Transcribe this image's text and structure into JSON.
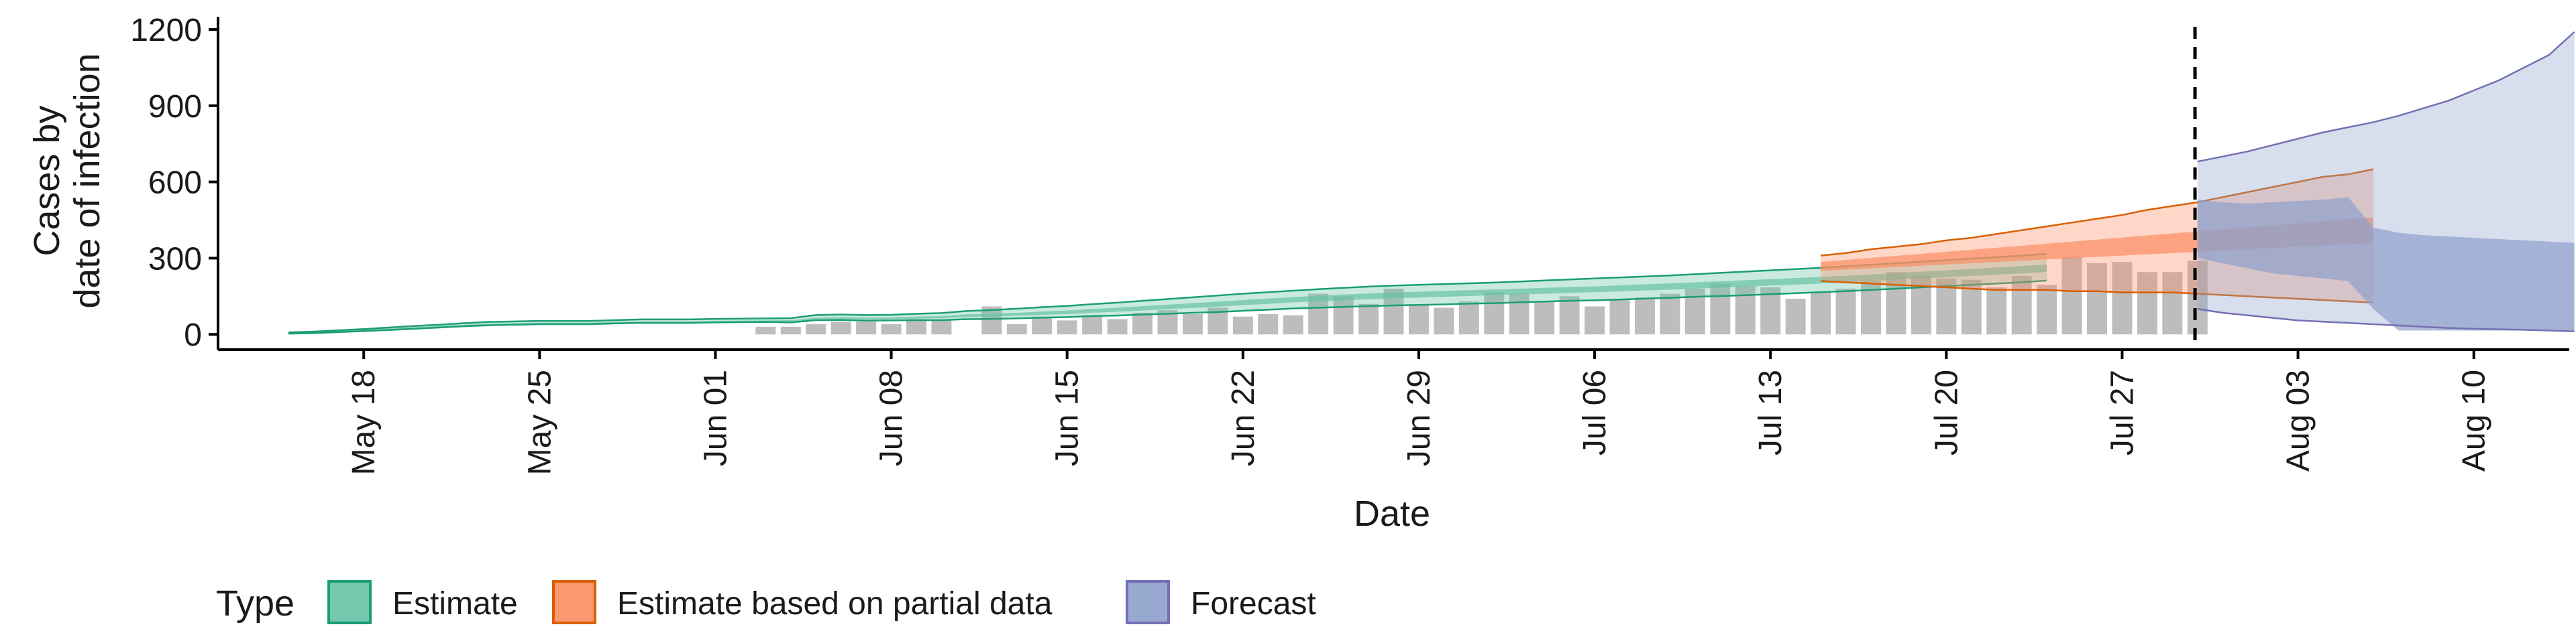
{
  "chart_data": {
    "type": "bar+ribbon",
    "title": "",
    "xlabel": "Date",
    "ylabel_lines": [
      "Cases by",
      "date of infection"
    ],
    "ylim": [
      -60,
      1250
    ],
    "y_ticks": [
      0,
      300,
      600,
      900,
      1200
    ],
    "y_tick_labels": [
      "0",
      "300",
      "600",
      "900",
      "1200"
    ],
    "x_start_date": "2020-05-15",
    "x_domain_days": [
      -2.8,
      90.8
    ],
    "x_ticks": [
      {
        "day": 3,
        "label": "May 18"
      },
      {
        "day": 10,
        "label": "May 25"
      },
      {
        "day": 17,
        "label": "Jun 01"
      },
      {
        "day": 24,
        "label": "Jun 08"
      },
      {
        "day": 31,
        "label": "Jun 15"
      },
      {
        "day": 38,
        "label": "Jun 22"
      },
      {
        "day": 45,
        "label": "Jun 29"
      },
      {
        "day": 52,
        "label": "Jul 06"
      },
      {
        "day": 59,
        "label": "Jul 13"
      },
      {
        "day": 66,
        "label": "Jul 20"
      },
      {
        "day": 73,
        "label": "Jul 27"
      },
      {
        "day": 80,
        "label": "Aug 03"
      },
      {
        "day": 87,
        "label": "Aug 10"
      }
    ],
    "forecast_start_day": 75.9,
    "bars_start_day": 19,
    "bars": [
      30,
      30,
      40,
      50,
      50,
      40,
      60,
      55,
      0,
      110,
      40,
      70,
      55,
      75,
      60,
      85,
      95,
      80,
      105,
      70,
      80,
      75,
      160,
      150,
      120,
      180,
      115,
      105,
      130,
      165,
      160,
      130,
      150,
      110,
      140,
      145,
      160,
      180,
      200,
      190,
      185,
      140,
      165,
      180,
      210,
      245,
      230,
      220,
      215,
      185,
      230,
      195,
      305,
      280,
      285,
      245,
      245,
      290
    ],
    "series": [
      {
        "name": "Estimate",
        "color_fill": "#66c2a5",
        "color_line": "#1b9e77",
        "x_start_day": 0,
        "outer_lower": [
          3,
          5,
          9,
          13,
          17,
          22,
          27,
          32,
          36,
          38,
          40,
          40,
          40,
          43,
          45,
          45,
          45,
          47,
          48,
          49,
          47,
          56,
          57,
          54,
          55,
          56,
          56,
          60,
          61,
          63,
          66,
          68,
          72,
          74,
          78,
          81,
          85,
          88,
          93,
          97,
          102,
          105,
          108,
          111,
          114,
          116,
          118,
          121,
          123,
          126,
          129,
          132,
          134,
          137,
          141,
          144,
          148,
          151,
          154,
          158,
          162,
          166,
          170,
          175,
          180,
          185,
          190,
          195,
          200,
          205,
          212
        ],
        "inner_lower": [
          4,
          6,
          10,
          14,
          19,
          24,
          29,
          34,
          38,
          40,
          42,
          42,
          42,
          45,
          47,
          47,
          47,
          49,
          50,
          51,
          50,
          60,
          61,
          59,
          60,
          62,
          63,
          68,
          70,
          73,
          77,
          80,
          85,
          89,
          94,
          99,
          104,
          109,
          115,
          120,
          126,
          130,
          134,
          138,
          142,
          145,
          148,
          151,
          154,
          157,
          160,
          163,
          166,
          169,
          173,
          176,
          180,
          184,
          188,
          192,
          196,
          200,
          205,
          210,
          215,
          220,
          225,
          230,
          235,
          240,
          246
        ],
        "inner_upper": [
          6,
          9,
          13,
          18,
          23,
          28,
          33,
          38,
          42,
          44,
          46,
          46,
          46,
          49,
          51,
          51,
          51,
          53,
          54,
          55,
          56,
          66,
          68,
          66,
          67,
          70,
          72,
          79,
          81,
          85,
          90,
          94,
          100,
          105,
          111,
          117,
          123,
          129,
          135,
          141,
          147,
          152,
          157,
          161,
          165,
          168,
          171,
          174,
          177,
          180,
          183,
          186,
          189,
          193,
          197,
          201,
          205,
          209,
          213,
          217,
          222,
          226,
          231,
          236,
          241,
          247,
          252,
          258,
          263,
          269,
          275
        ],
        "outer_upper": [
          8,
          11,
          16,
          21,
          27,
          33,
          38,
          44,
          49,
          51,
          53,
          53,
          53,
          56,
          59,
          59,
          59,
          61,
          62,
          63,
          64,
          76,
          78,
          76,
          77,
          81,
          84,
          92,
          96,
          101,
          107,
          112,
          119,
          125,
          132,
          139,
          146,
          153,
          160,
          166,
          172,
          178,
          183,
          188,
          192,
          195,
          198,
          201,
          204,
          208,
          212,
          216,
          220,
          224,
          228,
          232,
          237,
          242,
          247,
          252,
          257,
          262,
          268,
          274,
          280,
          286,
          292,
          298,
          304,
          310,
          317
        ]
      },
      {
        "name": "Estimate based on partial data",
        "color_fill": "#fc8d62",
        "color_line": "#d95f02",
        "x_start_day": 61,
        "outer_lower": [
          210,
          205,
          200,
          195,
          190,
          185,
          180,
          175,
          175,
          175,
          170,
          170,
          165,
          165,
          165,
          160,
          155,
          150,
          145,
          140,
          135,
          130,
          125
        ],
        "inner_lower": [
          250,
          255,
          260,
          265,
          270,
          275,
          280,
          285,
          290,
          295,
          300,
          305,
          310,
          315,
          320,
          325,
          330,
          335,
          340,
          345,
          350,
          355,
          360
        ],
        "inner_upper": [
          285,
          293,
          301,
          309,
          317,
          325,
          333,
          341,
          349,
          357,
          365,
          373,
          381,
          389,
          397,
          405,
          413,
          421,
          429,
          437,
          445,
          455,
          460
        ],
        "outer_upper": [
          310,
          320,
          335,
          345,
          355,
          370,
          380,
          395,
          410,
          425,
          440,
          455,
          470,
          490,
          505,
          520,
          540,
          560,
          580,
          600,
          620,
          630,
          650
        ]
      },
      {
        "name": "Forecast",
        "color_fill": "#8da0cb",
        "color_line": "#7570b3",
        "x_start_day": 76,
        "outer_lower": [
          100,
          85,
          75,
          65,
          55,
          50,
          45,
          40,
          35,
          30,
          25,
          22,
          20,
          18,
          15,
          12
        ],
        "inner_lower": [
          300,
          280,
          260,
          240,
          230,
          220,
          210,
          100,
          15,
          15,
          15,
          15,
          15,
          15,
          15,
          15
        ],
        "inner_upper": [
          530,
          520,
          515,
          520,
          525,
          530,
          540,
          420,
          400,
          390,
          385,
          380,
          375,
          370,
          365,
          360
        ],
        "outer_upper": [
          680,
          700,
          720,
          745,
          770,
          795,
          815,
          835,
          860,
          890,
          920,
          960,
          1000,
          1050,
          1100,
          1190
        ]
      }
    ],
    "vline_day": 75.9,
    "legend": {
      "title": "Type",
      "position": "bottom-left",
      "items": [
        "Estimate",
        "Estimate based on partial data",
        "Forecast"
      ]
    },
    "bar_color": "#bdbdbd"
  }
}
